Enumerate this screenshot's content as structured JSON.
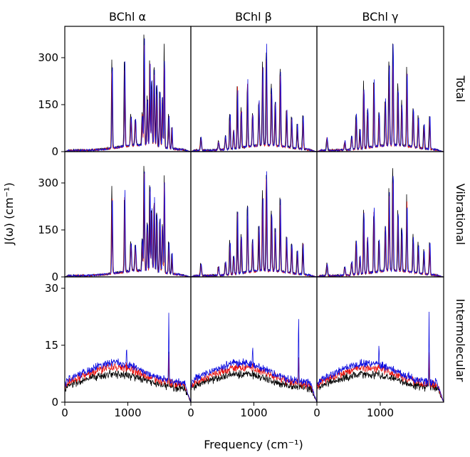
{
  "chart_data": {
    "type": "line",
    "columns": [
      "BChl α",
      "BChl β",
      "BChl γ"
    ],
    "rows": [
      "Total",
      "Vibrational",
      "Intermolecular"
    ],
    "xlabel": "Frequency (cm⁻¹)",
    "ylabel": "J(ω) (cm⁻¹)",
    "xlim": [
      0,
      2000
    ],
    "xticks": [
      0,
      1000
    ],
    "row_ylim": [
      [
        0,
        400
      ],
      [
        0,
        400
      ],
      [
        0,
        33
      ]
    ],
    "row_yticks": [
      [
        0,
        150,
        300
      ],
      [
        0,
        150,
        300
      ],
      [
        0,
        15,
        30
      ]
    ],
    "series_colors": [
      "#000000",
      "#e8120c",
      "#1010e0"
    ],
    "grid": false,
    "legend": "none",
    "peaks_high_freq": [
      {
        "x": 750,
        "w": 9,
        "h": 0.8
      },
      {
        "x": 950,
        "w": 9,
        "h": 0.78
      },
      {
        "x": 1050,
        "w": 12,
        "h": 0.27
      },
      {
        "x": 1120,
        "w": 12,
        "h": 0.24
      },
      {
        "x": 1230,
        "w": 10,
        "h": 0.3
      },
      {
        "x": 1260,
        "w": 9,
        "h": 0.98
      },
      {
        "x": 1310,
        "w": 10,
        "h": 0.45
      },
      {
        "x": 1350,
        "w": 9,
        "h": 0.8
      },
      {
        "x": 1380,
        "w": 10,
        "h": 0.6
      },
      {
        "x": 1420,
        "w": 10,
        "h": 0.7
      },
      {
        "x": 1460,
        "w": 10,
        "h": 0.55
      },
      {
        "x": 1510,
        "w": 10,
        "h": 0.5
      },
      {
        "x": 1550,
        "w": 10,
        "h": 0.45
      },
      {
        "x": 1580,
        "w": 8,
        "h": 0.92
      },
      {
        "x": 1650,
        "w": 10,
        "h": 0.3
      },
      {
        "x": 1700,
        "w": 8,
        "h": 0.2
      }
    ],
    "peaks_mid_freq": [
      {
        "x": 160,
        "w": 12,
        "h": 0.12
      },
      {
        "x": 440,
        "w": 12,
        "h": 0.08
      },
      {
        "x": 550,
        "w": 12,
        "h": 0.12
      },
      {
        "x": 620,
        "w": 10,
        "h": 0.32
      },
      {
        "x": 680,
        "w": 10,
        "h": 0.18
      },
      {
        "x": 740,
        "w": 9,
        "h": 0.6
      },
      {
        "x": 800,
        "w": 10,
        "h": 0.35
      },
      {
        "x": 900,
        "w": 9,
        "h": 0.62
      },
      {
        "x": 980,
        "w": 10,
        "h": 0.3
      },
      {
        "x": 1080,
        "w": 10,
        "h": 0.42
      },
      {
        "x": 1140,
        "w": 10,
        "h": 0.75
      },
      {
        "x": 1200,
        "w": 9,
        "h": 0.93
      },
      {
        "x": 1280,
        "w": 10,
        "h": 0.55
      },
      {
        "x": 1340,
        "w": 10,
        "h": 0.4
      },
      {
        "x": 1420,
        "w": 9,
        "h": 0.7
      },
      {
        "x": 1520,
        "w": 10,
        "h": 0.35
      },
      {
        "x": 1600,
        "w": 10,
        "h": 0.28
      },
      {
        "x": 1690,
        "w": 10,
        "h": 0.22
      },
      {
        "x": 1780,
        "w": 10,
        "h": 0.3
      }
    ]
  }
}
